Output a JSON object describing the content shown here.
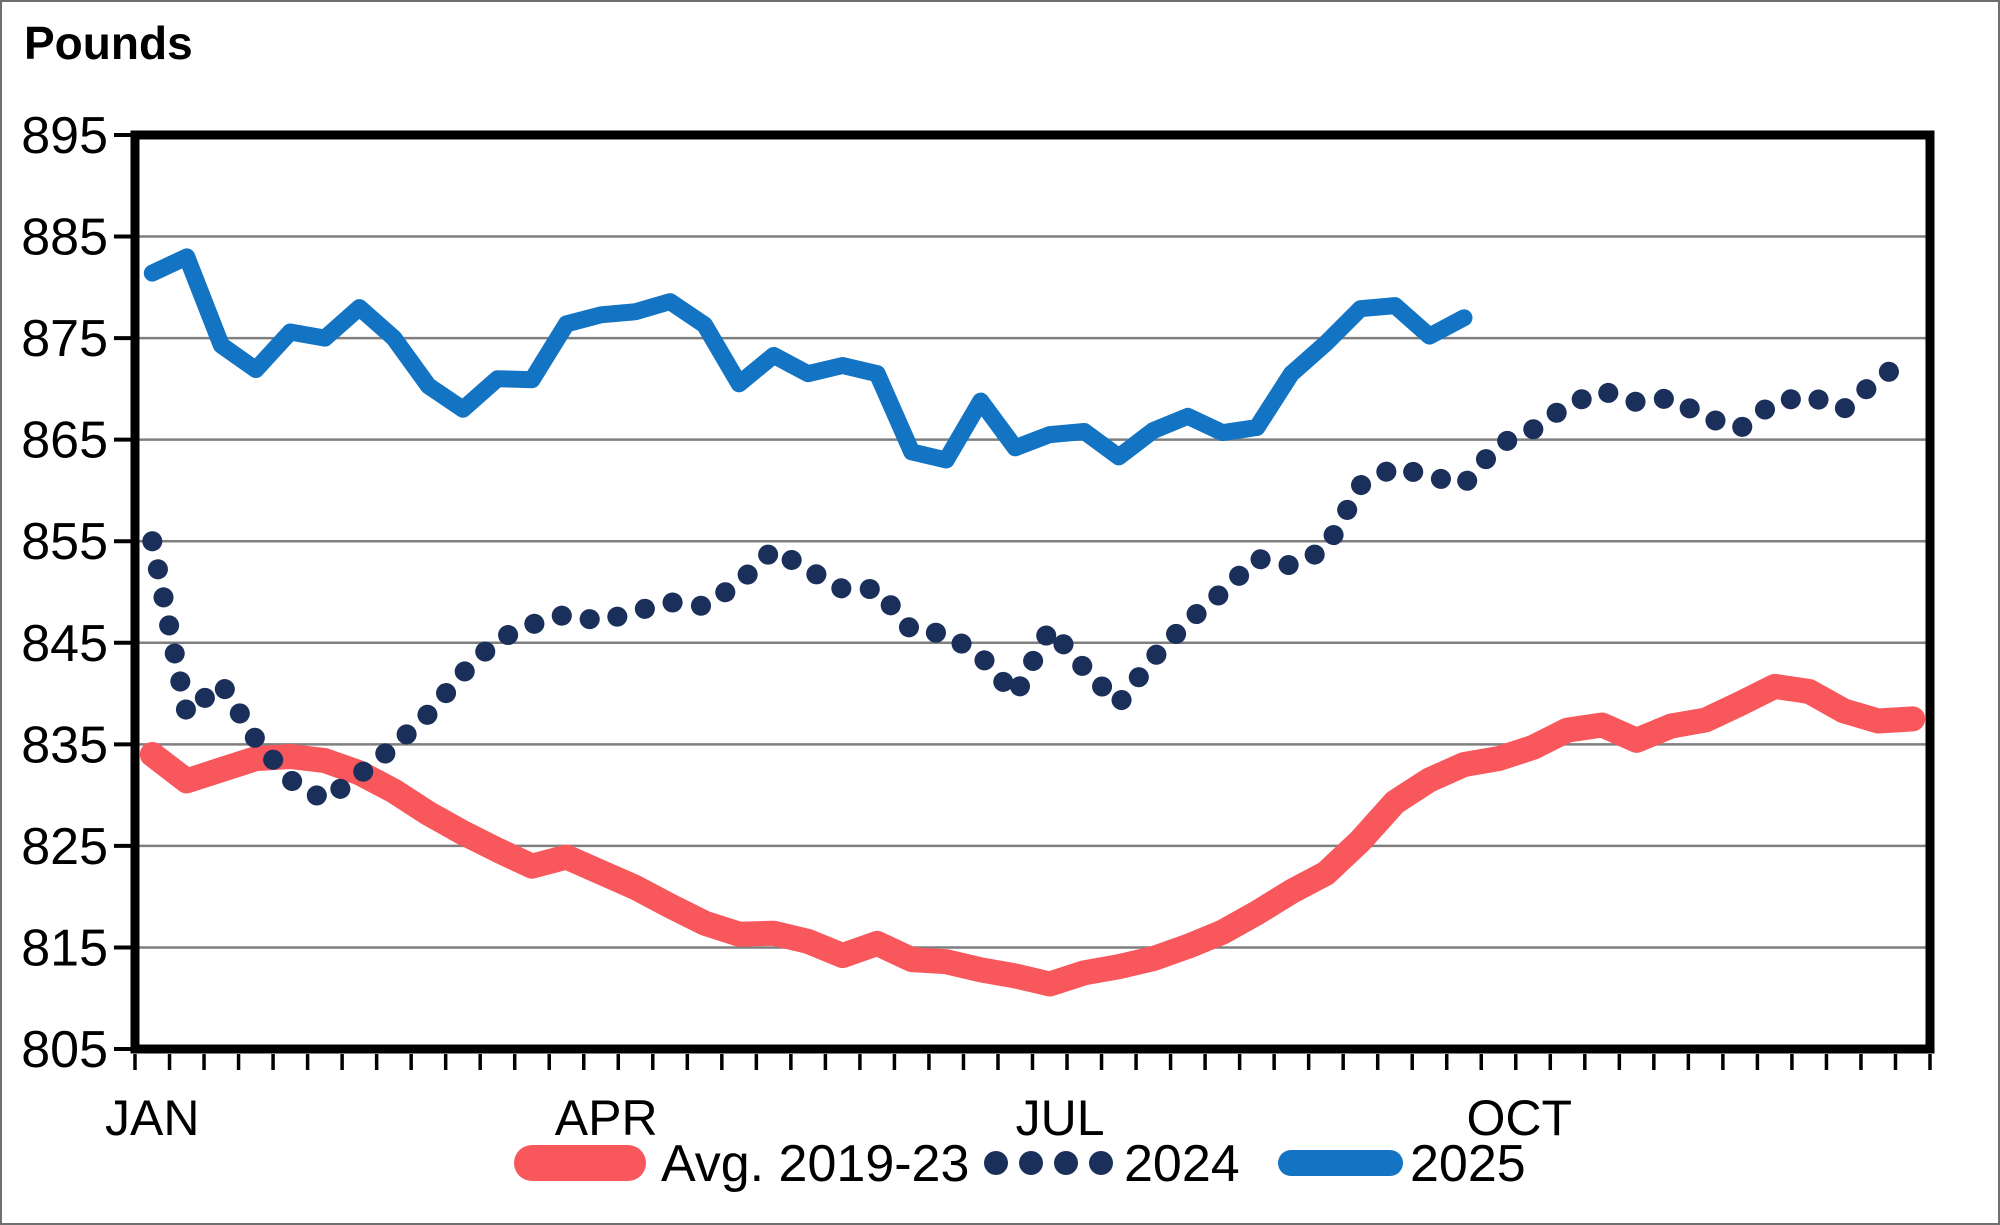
{
  "title": "Pounds",
  "y_axis": {
    "min": 805,
    "max": 895,
    "step": 10,
    "tick_labels": [
      "895",
      "885",
      "875",
      "865",
      "855",
      "845",
      "835",
      "825",
      "815",
      "805"
    ]
  },
  "x_axis": {
    "weeks": 52,
    "tick_interval": "weekly",
    "month_labels": [
      {
        "text": "JAN",
        "week": 1
      },
      {
        "text": "APR",
        "week": 14.15
      },
      {
        "text": "JUL",
        "week": 27.3
      },
      {
        "text": "OCT",
        "week": 40.6
      }
    ]
  },
  "legend": [
    {
      "label": "Avg. 2019-23",
      "color": "#F8575C",
      "style": "thick-solid"
    },
    {
      "label": "2024",
      "color": "#1B2F5B",
      "style": "dotted"
    },
    {
      "label": "2025",
      "color": "#1474C4",
      "style": "solid"
    }
  ],
  "colors": {
    "grid": "#7f7f7f",
    "axis": "#000000",
    "background": "#ffffff",
    "text": "#000000"
  },
  "chart_data": {
    "type": "line",
    "title": "Pounds",
    "ylabel": "Pounds",
    "x_unit": "week of year",
    "x_range": [
      1,
      52
    ],
    "ylim": [
      805,
      895
    ],
    "grid": "horizontal",
    "legend_position": "bottom",
    "series": [
      {
        "name": "Avg. 2019-23",
        "color": "#F8575C",
        "style": "solid",
        "line_width": 25,
        "values": [
          834,
          831.4,
          832.5,
          833.6,
          833.8,
          833.4,
          832.2,
          830.4,
          828.2,
          826.3,
          824.6,
          823,
          823.9,
          822.4,
          820.9,
          819.1,
          817.4,
          816.3,
          816.4,
          815.6,
          814.2,
          815.4,
          813.8,
          813.6,
          812.8,
          812.2,
          811.4,
          812.5,
          813.1,
          813.9,
          815.1,
          816.5,
          818.4,
          820.5,
          822.3,
          825.5,
          829.3,
          831.5,
          833,
          833.6,
          834.7,
          836.4,
          836.9,
          835.4,
          836.8,
          837.4,
          839,
          840.7,
          840.2,
          838.3,
          837.3,
          837.5
        ]
      },
      {
        "name": "2024",
        "color": "#1B2F5B",
        "style": "dotted",
        "line_width": 20,
        "values": [
          855,
          838,
          841,
          835.5,
          831.5,
          829.5,
          832,
          834.8,
          838,
          842,
          845.3,
          846.8,
          847.8,
          847.1,
          848.1,
          849,
          848.6,
          850.9,
          854.2,
          852.2,
          850.3,
          850.3,
          846.2,
          845.9,
          843.7,
          839.8,
          846.4,
          842.5,
          839,
          843.5,
          847.1,
          850,
          853.3,
          852.6,
          854.2,
          860.5,
          862.3,
          861.4,
          860.6,
          864.5,
          866,
          868.4,
          869.8,
          868.7,
          869.1,
          867.2,
          866.1,
          868.7,
          869.3,
          868,
          871,
          873.2
        ]
      },
      {
        "name": "2025",
        "color": "#1474C4",
        "style": "solid",
        "line_width": 17,
        "values": [
          881.4,
          883,
          874.3,
          871.9,
          875.6,
          875,
          878,
          875,
          870.3,
          868,
          871,
          870.9,
          876.4,
          877.3,
          877.6,
          878.6,
          876.3,
          870.5,
          873.3,
          871.5,
          872.3,
          871.5,
          863.8,
          863,
          868.8,
          864.2,
          865.5,
          865.8,
          863.3,
          865.9,
          867.3,
          865.7,
          866.2,
          871.5,
          874.5,
          877.9,
          878.2,
          875.2,
          877
        ]
      }
    ]
  }
}
